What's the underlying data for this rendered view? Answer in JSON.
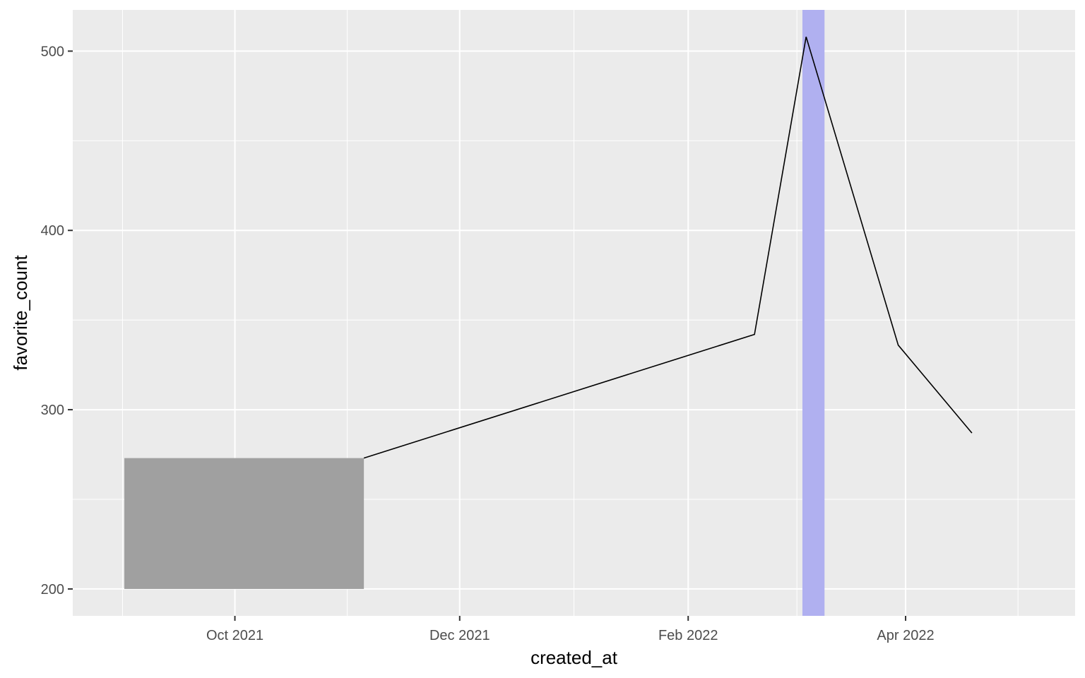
{
  "chart_data": {
    "type": "line",
    "xlabel": "created_at",
    "ylabel": "favorite_count",
    "x_ticks": [
      "2021-10-01",
      "2021-12-01",
      "2022-02-01",
      "2022-04-01"
    ],
    "x_tick_labels": [
      "Oct 2021",
      "Dec 2021",
      "Feb 2022",
      "Apr 2022"
    ],
    "y_ticks": [
      200,
      300,
      400,
      500
    ],
    "y_tick_labels": [
      "200",
      "300",
      "400",
      "500"
    ],
    "xlim": [
      "2021-08-18",
      "2022-05-17"
    ],
    "ylim": [
      185,
      523
    ],
    "series": [
      {
        "values": [
          {
            "x": "2021-11-05",
            "y": 273
          },
          {
            "x": "2022-02-19",
            "y": 342
          },
          {
            "x": "2022-03-05",
            "y": 508
          },
          {
            "x": "2022-03-30",
            "y": 336
          },
          {
            "x": "2022-04-19",
            "y": 287
          }
        ]
      }
    ],
    "annotations": [
      {
        "type": "rect",
        "xmin": "2021-09-01",
        "xmax": "2021-11-05",
        "ymin": 200,
        "ymax": 273,
        "color": "#a0a0a0"
      },
      {
        "type": "rect",
        "xmin": "2022-03-04",
        "xmax": "2022-03-10",
        "color": "#b0b0f0"
      }
    ],
    "grid": true,
    "colors": {
      "panel_background": "#ebebeb",
      "grid_line": "#ffffff",
      "line": "#000000",
      "tick_mark": "#333333",
      "tick_text": "#4d4d4d"
    }
  }
}
